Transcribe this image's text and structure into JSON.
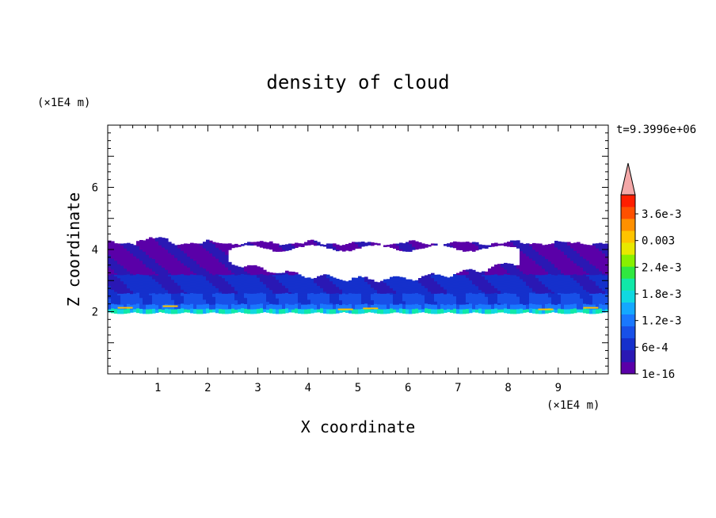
{
  "chart_data": {
    "type": "heatmap",
    "title": "density of cloud",
    "xlabel": "X coordinate",
    "ylabel": "Z coordinate",
    "x_unit": "(×1E4 m)",
    "y_unit": "(×1E4 m)",
    "time_label": "t=9.3996e+06",
    "xlim": [
      0,
      10
    ],
    "ylim": [
      0,
      8
    ],
    "x_ticks": [
      "1",
      "2",
      "3",
      "4",
      "5",
      "6",
      "7",
      "8",
      "9"
    ],
    "y_ticks": [
      "2",
      "4",
      "6"
    ],
    "colorbar": {
      "labels": [
        "3.6e-3",
        "0.003",
        "2.4e-3",
        "1.8e-3",
        "1.2e-3",
        "6e-4",
        "1e-16"
      ],
      "colors": [
        "#5a00a8",
        "#2a18b4",
        "#1530cc",
        "#1850e8",
        "#1a78ff",
        "#14a8ff",
        "#10d8e0",
        "#10e8a8",
        "#30e840",
        "#88f000",
        "#e8e800",
        "#ffc400",
        "#ff9000",
        "#ff5000",
        "#ff1e00"
      ],
      "extend_color": "#f4a8a8"
    },
    "cloud_layer": {
      "base": 2.0,
      "top": 4.3,
      "gap_x_range": [
        2.4,
        8.2
      ],
      "max_density": 0.0036
    }
  }
}
